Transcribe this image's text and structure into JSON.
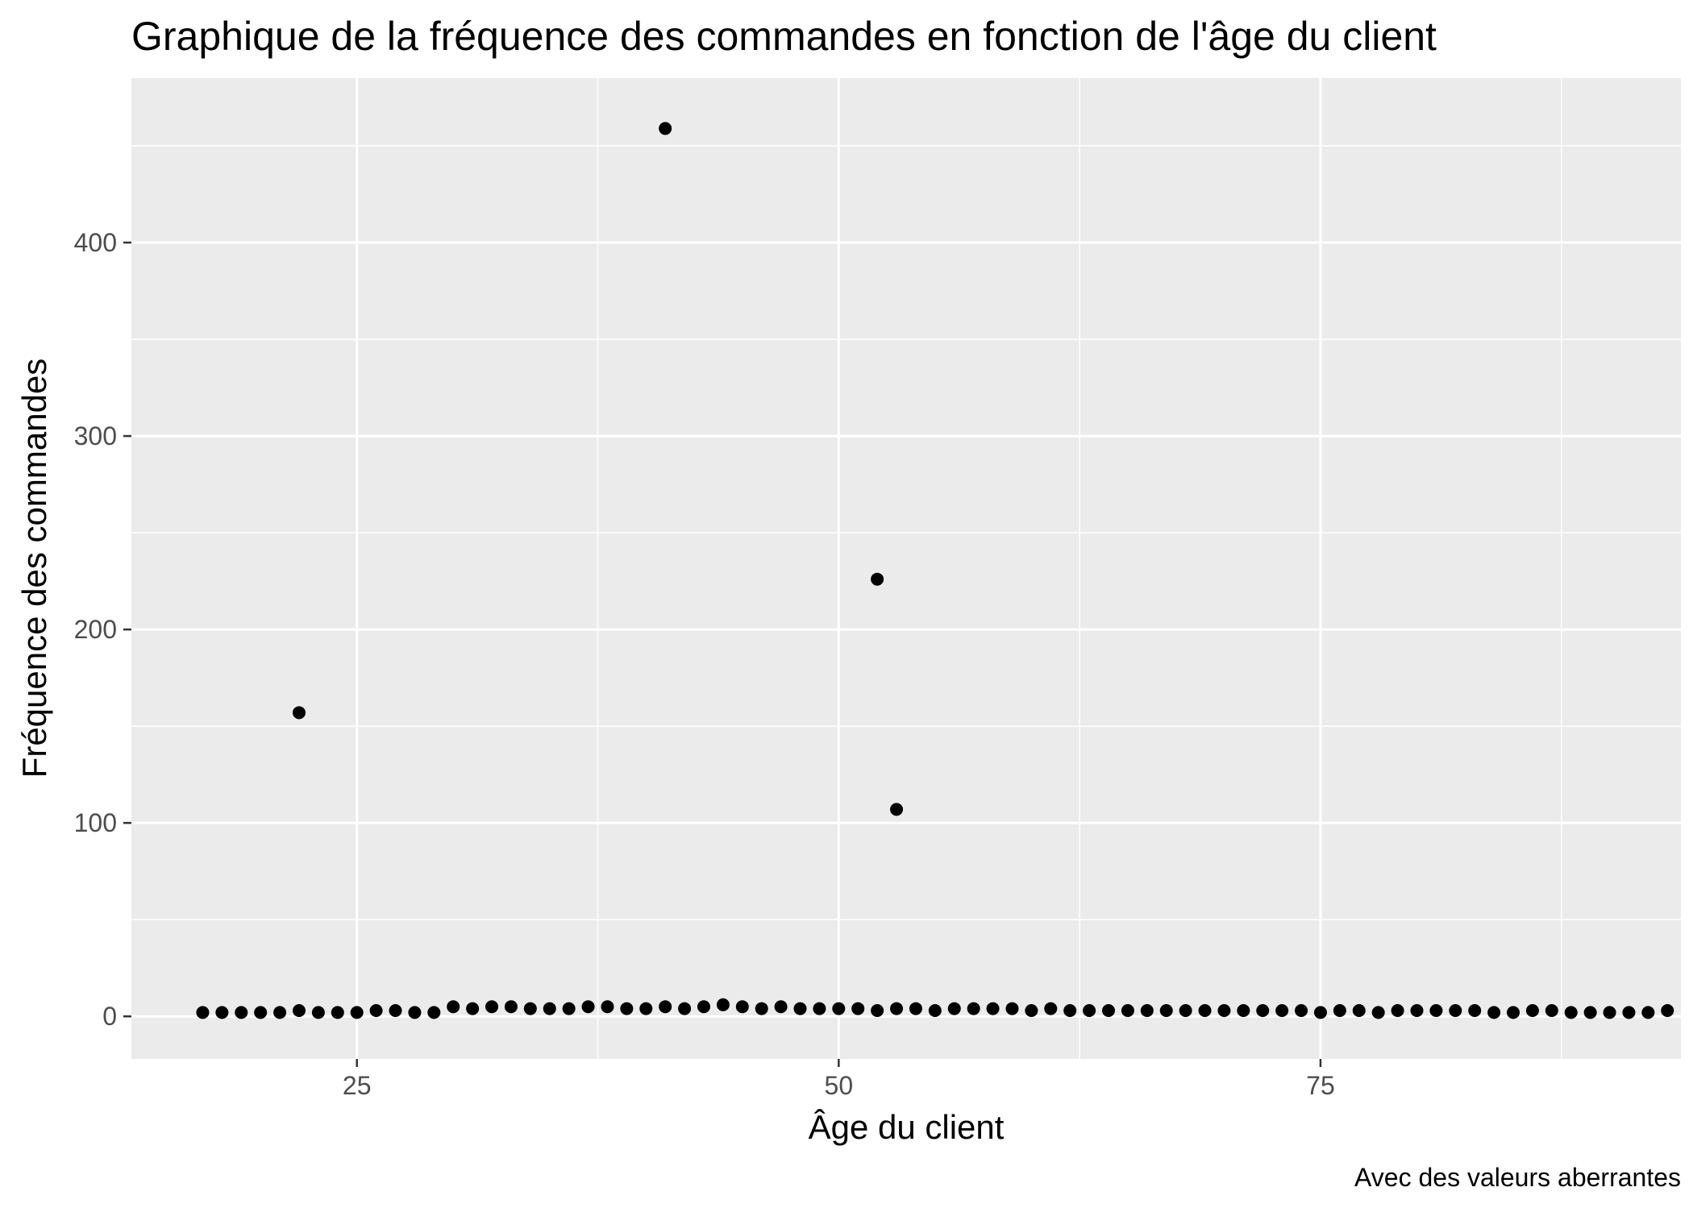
{
  "chart_data": {
    "type": "scatter",
    "title": "Graphique de la fréquence des commandes en fonction de l'âge du client",
    "xlabel": "Âge du client",
    "ylabel": "Fréquence des commandes",
    "caption": "Avec des valeurs aberrantes",
    "xlim": [
      13.3,
      93.7
    ],
    "ylim": [
      -22,
      485
    ],
    "x_ticks": [
      25,
      50,
      75
    ],
    "y_ticks": [
      0,
      100,
      200,
      300,
      400
    ],
    "grid": true,
    "legend": "none",
    "point_color": "#000000",
    "panel_background": "#ebebeb",
    "grid_color": "#ffffff",
    "points": [
      {
        "x": 17,
        "y": 2
      },
      {
        "x": 18,
        "y": 2
      },
      {
        "x": 19,
        "y": 2
      },
      {
        "x": 20,
        "y": 2
      },
      {
        "x": 21,
        "y": 2
      },
      {
        "x": 22,
        "y": 3
      },
      {
        "x": 23,
        "y": 2
      },
      {
        "x": 24,
        "y": 2
      },
      {
        "x": 25,
        "y": 2
      },
      {
        "x": 26,
        "y": 3
      },
      {
        "x": 27,
        "y": 3
      },
      {
        "x": 28,
        "y": 2
      },
      {
        "x": 29,
        "y": 2
      },
      {
        "x": 30,
        "y": 5
      },
      {
        "x": 31,
        "y": 4
      },
      {
        "x": 32,
        "y": 5
      },
      {
        "x": 33,
        "y": 5
      },
      {
        "x": 34,
        "y": 4
      },
      {
        "x": 35,
        "y": 4
      },
      {
        "x": 36,
        "y": 4
      },
      {
        "x": 37,
        "y": 5
      },
      {
        "x": 38,
        "y": 5
      },
      {
        "x": 39,
        "y": 4
      },
      {
        "x": 40,
        "y": 4
      },
      {
        "x": 41,
        "y": 5
      },
      {
        "x": 42,
        "y": 4
      },
      {
        "x": 43,
        "y": 5
      },
      {
        "x": 44,
        "y": 6
      },
      {
        "x": 45,
        "y": 5
      },
      {
        "x": 46,
        "y": 4
      },
      {
        "x": 47,
        "y": 5
      },
      {
        "x": 48,
        "y": 4
      },
      {
        "x": 49,
        "y": 4
      },
      {
        "x": 50,
        "y": 4
      },
      {
        "x": 51,
        "y": 4
      },
      {
        "x": 52,
        "y": 3
      },
      {
        "x": 53,
        "y": 4
      },
      {
        "x": 54,
        "y": 4
      },
      {
        "x": 55,
        "y": 3
      },
      {
        "x": 56,
        "y": 4
      },
      {
        "x": 57,
        "y": 4
      },
      {
        "x": 58,
        "y": 4
      },
      {
        "x": 59,
        "y": 4
      },
      {
        "x": 60,
        "y": 3
      },
      {
        "x": 61,
        "y": 4
      },
      {
        "x": 62,
        "y": 3
      },
      {
        "x": 63,
        "y": 3
      },
      {
        "x": 64,
        "y": 3
      },
      {
        "x": 65,
        "y": 3
      },
      {
        "x": 66,
        "y": 3
      },
      {
        "x": 67,
        "y": 3
      },
      {
        "x": 68,
        "y": 3
      },
      {
        "x": 69,
        "y": 3
      },
      {
        "x": 70,
        "y": 3
      },
      {
        "x": 71,
        "y": 3
      },
      {
        "x": 72,
        "y": 3
      },
      {
        "x": 73,
        "y": 3
      },
      {
        "x": 74,
        "y": 3
      },
      {
        "x": 75,
        "y": 2
      },
      {
        "x": 76,
        "y": 3
      },
      {
        "x": 77,
        "y": 3
      },
      {
        "x": 78,
        "y": 2
      },
      {
        "x": 79,
        "y": 3
      },
      {
        "x": 80,
        "y": 3
      },
      {
        "x": 81,
        "y": 3
      },
      {
        "x": 82,
        "y": 3
      },
      {
        "x": 83,
        "y": 3
      },
      {
        "x": 84,
        "y": 2
      },
      {
        "x": 85,
        "y": 2
      },
      {
        "x": 86,
        "y": 3
      },
      {
        "x": 87,
        "y": 3
      },
      {
        "x": 88,
        "y": 2
      },
      {
        "x": 89,
        "y": 2
      },
      {
        "x": 90,
        "y": 2
      },
      {
        "x": 91,
        "y": 2
      },
      {
        "x": 92,
        "y": 2
      },
      {
        "x": 93,
        "y": 3
      },
      {
        "x": 22,
        "y": 157
      },
      {
        "x": 41,
        "y": 459
      },
      {
        "x": 52,
        "y": 226
      },
      {
        "x": 53,
        "y": 107
      }
    ]
  }
}
